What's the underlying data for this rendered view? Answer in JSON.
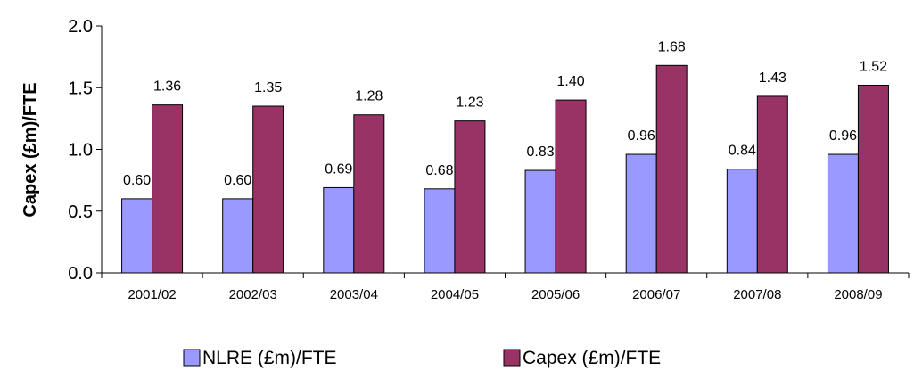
{
  "chart_data": {
    "type": "bar",
    "categories": [
      "2001/02",
      "2002/03",
      "2003/04",
      "2004/05",
      "2005/06",
      "2006/07",
      "2007/08",
      "2008/09"
    ],
    "series": [
      {
        "name": "NLRE (£m)/FTE",
        "values": [
          0.6,
          0.6,
          0.69,
          0.68,
          0.83,
          0.96,
          0.84,
          0.96
        ],
        "color": "#9999ff"
      },
      {
        "name": "Capex (£m)/FTE",
        "values": [
          1.36,
          1.35,
          1.28,
          1.23,
          1.4,
          1.68,
          1.43,
          1.52
        ],
        "color": "#993366"
      }
    ],
    "data_labels": [
      [
        "0.60",
        "0.60",
        "0.69",
        "0.68",
        "0.83",
        "0.96",
        "0.84",
        "0.96"
      ],
      [
        "1.36",
        "1.35",
        "1.28",
        "1.23",
        "1.40",
        "1.68",
        "1.43",
        "1.52"
      ]
    ],
    "yticks": [
      "0.0",
      "0.5",
      "1.0",
      "1.5",
      "2.0"
    ],
    "ylabel": "Capex (£m)/FTE",
    "xlabel": "",
    "ylim": [
      0,
      2.0
    ],
    "grid": false,
    "legend": "bottom"
  }
}
